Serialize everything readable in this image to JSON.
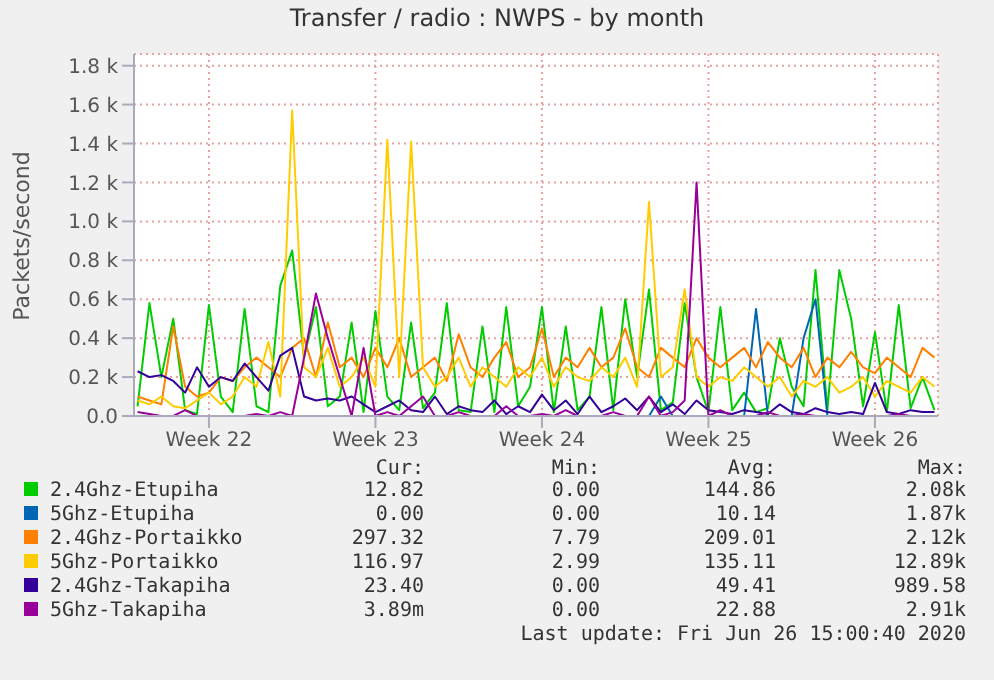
{
  "chart_data": {
    "type": "line",
    "title": "Transfer / radio : NWPS - by month",
    "ylabel": "Packets/second",
    "categories": [
      null,
      null,
      null,
      null,
      null,
      null,
      "Week 22",
      null,
      null,
      null,
      null,
      null,
      null,
      null,
      null,
      null,
      null,
      null,
      null,
      null,
      "Week 23",
      null,
      null,
      null,
      null,
      null,
      null,
      null,
      null,
      null,
      null,
      null,
      null,
      null,
      "Week 24",
      null,
      null,
      null,
      null,
      null,
      null,
      null,
      null,
      null,
      null,
      null,
      null,
      null,
      "Week 25",
      null,
      null,
      null,
      null,
      null,
      null,
      null,
      null,
      null,
      null,
      null,
      null,
      null,
      "Week 26",
      null,
      null,
      null,
      null,
      null
    ],
    "ylim": [
      0,
      1860
    ],
    "yticks": [
      {
        "value": 0,
        "label": "0.0"
      },
      {
        "value": 200,
        "label": "0.2 k"
      },
      {
        "value": 400,
        "label": "0.4 k"
      },
      {
        "value": 600,
        "label": "0.6 k"
      },
      {
        "value": 800,
        "label": "0.8 k"
      },
      {
        "value": 1000,
        "label": "1.0 k"
      },
      {
        "value": 1200,
        "label": "1.2 k"
      },
      {
        "value": 1400,
        "label": "1.4 k"
      },
      {
        "value": 1600,
        "label": "1.6 k"
      },
      {
        "value": 1800,
        "label": "1.8 k"
      }
    ],
    "grid": true,
    "legend": "bottom",
    "series": [
      {
        "name": "2.4Ghz-Etupiha",
        "color": "#00cc00",
        "values": [
          50,
          580,
          200,
          500,
          30,
          10,
          570,
          100,
          20,
          550,
          50,
          20,
          670,
          850,
          300,
          560,
          50,
          100,
          480,
          20,
          540,
          100,
          30,
          480,
          40,
          120,
          580,
          30,
          20,
          460,
          20,
          560,
          50,
          150,
          560,
          20,
          460,
          30,
          100,
          560,
          30,
          600,
          200,
          650,
          30,
          70,
          580,
          200,
          20,
          560,
          30,
          120,
          20,
          40,
          400,
          150,
          50,
          750,
          30,
          750,
          500,
          50,
          430,
          20,
          570,
          40,
          200,
          30
        ]
      },
      {
        "name": "5Ghz-Etupiha",
        "color": "#0066b3",
        "values": [
          null,
          null,
          null,
          null,
          null,
          null,
          null,
          null,
          null,
          null,
          null,
          null,
          null,
          null,
          null,
          null,
          null,
          null,
          null,
          null,
          null,
          null,
          null,
          null,
          null,
          null,
          null,
          null,
          null,
          null,
          null,
          null,
          null,
          null,
          null,
          null,
          null,
          null,
          null,
          null,
          null,
          null,
          null,
          0,
          100,
          0,
          null,
          null,
          null,
          null,
          null,
          0,
          550,
          0,
          null,
          0,
          400,
          600,
          0,
          null,
          null,
          null,
          null,
          null,
          null,
          null,
          null,
          null
        ]
      },
      {
        "name": "2.4Ghz-Portaikko",
        "color": "#ff8000",
        "values": [
          100,
          80,
          60,
          460,
          150,
          100,
          120,
          200,
          180,
          250,
          300,
          250,
          200,
          350,
          400,
          200,
          480,
          250,
          300,
          200,
          350,
          250,
          400,
          200,
          250,
          300,
          180,
          420,
          250,
          200,
          300,
          380,
          200,
          250,
          450,
          200,
          300,
          250,
          350,
          250,
          300,
          450,
          250,
          200,
          350,
          300,
          250,
          400,
          300,
          250,
          300,
          350,
          250,
          380,
          300,
          250,
          350,
          200,
          300,
          250,
          330,
          250,
          220,
          300,
          250,
          200,
          350,
          300
        ]
      },
      {
        "name": "5Ghz-Portaikko",
        "color": "#ffcc00",
        "values": [
          80,
          60,
          100,
          50,
          40,
          80,
          120,
          60,
          100,
          200,
          150,
          380,
          100,
          1570,
          250,
          200,
          350,
          150,
          200,
          300,
          150,
          1420,
          200,
          1410,
          250,
          150,
          200,
          300,
          150,
          250,
          200,
          150,
          250,
          200,
          300,
          150,
          250,
          200,
          180,
          250,
          200,
          300,
          150,
          1100,
          200,
          250,
          650,
          200,
          150,
          200,
          180,
          250,
          200,
          150,
          200,
          100,
          180,
          150,
          200,
          120,
          150,
          200,
          100,
          180,
          150,
          120,
          200,
          150
        ]
      },
      {
        "name": "2.4Ghz-Takapiha",
        "color": "#330099",
        "values": [
          230,
          200,
          210,
          180,
          120,
          250,
          150,
          200,
          180,
          270,
          200,
          130,
          310,
          350,
          100,
          80,
          90,
          80,
          100,
          60,
          20,
          50,
          80,
          30,
          20,
          100,
          10,
          50,
          30,
          20,
          80,
          10,
          50,
          20,
          110,
          30,
          80,
          10,
          100,
          20,
          50,
          90,
          30,
          100,
          20,
          60,
          10,
          80,
          30,
          20,
          10,
          30,
          20,
          10,
          60,
          20,
          10,
          40,
          20,
          10,
          20,
          10,
          170,
          20,
          10,
          30,
          20,
          20
        ]
      },
      {
        "name": "5Ghz-Takapiha",
        "color": "#990099",
        "values": [
          20,
          10,
          0,
          0,
          30,
          0,
          0,
          0,
          0,
          0,
          10,
          0,
          20,
          0,
          300,
          630,
          400,
          200,
          0,
          350,
          0,
          20,
          0,
          50,
          100,
          0,
          0,
          20,
          0,
          0,
          0,
          50,
          0,
          0,
          10,
          0,
          30,
          0,
          0,
          0,
          20,
          0,
          0,
          100,
          0,
          20,
          80,
          1200,
          0,
          30,
          0,
          0,
          0,
          20,
          0,
          0,
          10,
          0,
          0,
          0,
          0,
          0,
          0,
          0,
          10,
          0,
          0,
          0
        ]
      }
    ],
    "annotations": [
      "Cur:",
      "Min:",
      "Avg:",
      "Max:",
      "12.82",
      "0.00",
      "144.86",
      "2.08k",
      "0.00",
      "0.00",
      "10.14",
      "1.87k",
      "297.32",
      "7.79",
      "209.01",
      "2.12k",
      "116.97",
      "2.99",
      "135.11",
      "12.89k",
      "23.40",
      "0.00",
      "49.41",
      "989.58",
      "3.89m",
      "0.00",
      "22.88",
      "2.91k",
      "Last update: Fri Jun 26 15:00:40 2020"
    ]
  }
}
